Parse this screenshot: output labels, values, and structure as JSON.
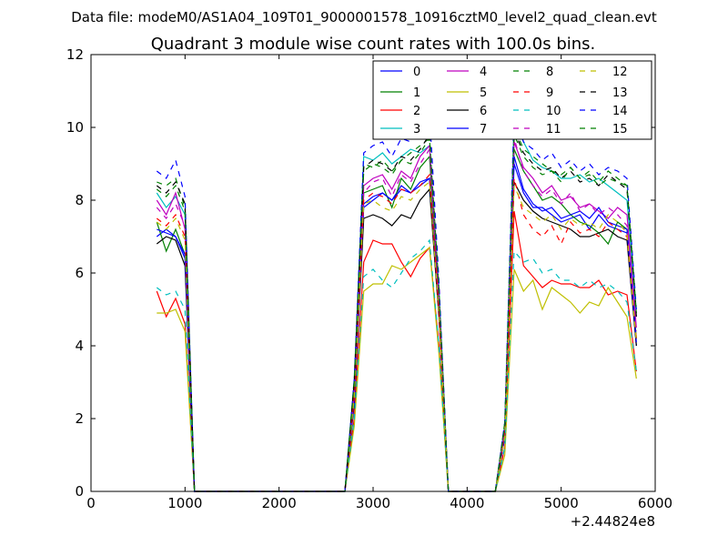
{
  "chart_data": {
    "type": "line",
    "suptitle": "Data file: modeM0/AS1A04_109T01_9000001578_10916cztM0_level2_quad_clean.evt",
    "title": "Quadrant 3 module wise count rates with 100.0s bins.",
    "xlabel": "",
    "ylabel": "",
    "x_offset_label": "+2.44824e8",
    "xlim": [
      0,
      6000
    ],
    "ylim": [
      0,
      12
    ],
    "xticks": [
      0,
      1000,
      2000,
      3000,
      4000,
      5000,
      6000
    ],
    "yticks": [
      0,
      2,
      4,
      6,
      8,
      10,
      12
    ],
    "legend_location": "top-right",
    "x": [
      700,
      800,
      900,
      1000,
      1100,
      1200,
      1300,
      1400,
      1500,
      1600,
      1700,
      1800,
      1900,
      2000,
      2100,
      2200,
      2300,
      2400,
      2500,
      2600,
      2700,
      2800,
      2900,
      3000,
      3100,
      3200,
      3300,
      3400,
      3500,
      3600,
      3700,
      3800,
      3900,
      4000,
      4100,
      4200,
      4300,
      4400,
      4500,
      4600,
      4700,
      4800,
      4900,
      5000,
      5100,
      5200,
      5300,
      5400,
      5500,
      5600,
      5700,
      5800
    ],
    "series": [
      {
        "name": "0",
        "color": "#0000ff",
        "dash": "solid",
        "values": [
          7.0,
          7.2,
          7.0,
          6.4,
          0,
          0,
          0,
          0,
          0,
          0,
          0,
          0,
          0,
          0,
          0,
          0,
          0,
          0,
          0,
          0,
          0,
          2.5,
          7.8,
          8.0,
          8.2,
          8.0,
          8.4,
          8.2,
          8.5,
          8.6,
          5.0,
          0,
          0,
          0,
          0,
          0,
          0,
          1.5,
          9.0,
          8.2,
          7.8,
          7.8,
          7.6,
          7.4,
          7.5,
          7.6,
          7.2,
          7.6,
          7.3,
          7.2,
          7.1,
          4.0
        ]
      },
      {
        "name": "1",
        "color": "#008000",
        "dash": "solid",
        "values": [
          7.4,
          6.6,
          7.2,
          6.5,
          0,
          0,
          0,
          0,
          0,
          0,
          0,
          0,
          0,
          0,
          0,
          0,
          0,
          0,
          0,
          0,
          0,
          2.7,
          8.2,
          8.3,
          8.4,
          7.8,
          8.6,
          8.3,
          8.9,
          9.2,
          5.2,
          0,
          0,
          0,
          0,
          0,
          0,
          1.6,
          9.4,
          8.8,
          8.4,
          8.0,
          8.1,
          7.9,
          7.6,
          7.4,
          7.3,
          7.1,
          6.8,
          7.4,
          7.2,
          4.2
        ]
      },
      {
        "name": "2",
        "color": "#ff0000",
        "dash": "solid",
        "values": [
          5.5,
          4.8,
          5.3,
          4.6,
          0,
          0,
          0,
          0,
          0,
          0,
          0,
          0,
          0,
          0,
          0,
          0,
          0,
          0,
          0,
          0,
          0,
          2.0,
          6.3,
          6.9,
          6.8,
          6.8,
          6.3,
          5.9,
          6.4,
          6.7,
          4.0,
          0,
          0,
          0,
          0,
          0,
          0,
          1.2,
          7.7,
          6.2,
          5.9,
          5.6,
          5.8,
          5.7,
          5.7,
          5.6,
          5.6,
          5.8,
          5.4,
          5.5,
          5.4,
          3.3
        ]
      },
      {
        "name": "3",
        "color": "#00bfbf",
        "dash": "solid",
        "values": [
          8.2,
          7.8,
          8.1,
          7.6,
          0,
          0,
          0,
          0,
          0,
          0,
          0,
          0,
          0,
          0,
          0,
          0,
          0,
          0,
          0,
          0,
          0,
          3.0,
          9.2,
          9.1,
          9.3,
          9.0,
          9.2,
          9.4,
          9.3,
          9.5,
          5.6,
          0,
          0,
          0,
          0,
          0,
          0,
          1.8,
          10.2,
          9.6,
          9.1,
          8.9,
          8.8,
          8.6,
          8.6,
          8.7,
          8.5,
          8.6,
          8.4,
          8.2,
          8.0,
          4.8
        ]
      },
      {
        "name": "4",
        "color": "#bf00bf",
        "dash": "solid",
        "values": [
          8.0,
          7.6,
          8.2,
          7.2,
          0,
          0,
          0,
          0,
          0,
          0,
          0,
          0,
          0,
          0,
          0,
          0,
          0,
          0,
          0,
          0,
          0,
          2.8,
          8.4,
          8.6,
          8.7,
          8.3,
          8.8,
          8.6,
          9.2,
          9.5,
          5.4,
          0,
          0,
          0,
          0,
          0,
          0,
          1.7,
          9.6,
          8.9,
          8.6,
          8.2,
          8.4,
          8.0,
          8.1,
          7.8,
          7.9,
          7.7,
          7.5,
          7.8,
          7.6,
          4.5
        ]
      },
      {
        "name": "5",
        "color": "#bfbf00",
        "dash": "solid",
        "values": [
          4.9,
          4.9,
          5.0,
          4.4,
          0,
          0,
          0,
          0,
          0,
          0,
          0,
          0,
          0,
          0,
          0,
          0,
          0,
          0,
          0,
          0,
          0,
          1.8,
          5.5,
          5.7,
          5.7,
          6.2,
          6.1,
          6.3,
          6.5,
          6.7,
          3.8,
          0,
          0,
          0,
          0,
          0,
          0,
          1.0,
          6.1,
          5.5,
          5.8,
          5.0,
          5.6,
          5.4,
          5.2,
          4.9,
          5.2,
          5.1,
          5.6,
          5.2,
          4.8,
          3.1
        ]
      },
      {
        "name": "6",
        "color": "#000000",
        "dash": "solid",
        "values": [
          6.8,
          7.0,
          6.9,
          6.2,
          0,
          0,
          0,
          0,
          0,
          0,
          0,
          0,
          0,
          0,
          0,
          0,
          0,
          0,
          0,
          0,
          0,
          2.4,
          7.5,
          7.6,
          7.5,
          7.3,
          7.6,
          7.5,
          8.0,
          8.3,
          4.8,
          0,
          0,
          0,
          0,
          0,
          0,
          1.5,
          8.5,
          8.0,
          7.7,
          7.5,
          7.4,
          7.3,
          7.2,
          7.0,
          7.0,
          7.1,
          7.2,
          7.0,
          6.9,
          4.0
        ]
      },
      {
        "name": "7",
        "color": "#0000ff",
        "dash": "solid",
        "values": [
          7.2,
          7.1,
          7.0,
          6.5,
          0,
          0,
          0,
          0,
          0,
          0,
          0,
          0,
          0,
          0,
          0,
          0,
          0,
          0,
          0,
          0,
          0,
          2.5,
          7.9,
          8.1,
          8.2,
          8.0,
          8.3,
          8.2,
          8.4,
          8.6,
          5.0,
          0,
          0,
          0,
          0,
          0,
          0,
          1.5,
          9.2,
          8.3,
          7.9,
          7.7,
          7.8,
          7.5,
          7.6,
          7.7,
          7.5,
          7.8,
          7.4,
          7.3,
          7.2,
          4.1
        ]
      },
      {
        "name": "8",
        "color": "#008000",
        "dash": "dashed",
        "values": [
          8.5,
          8.4,
          8.6,
          7.8,
          0,
          0,
          0,
          0,
          0,
          0,
          0,
          0,
          0,
          0,
          0,
          0,
          0,
          0,
          0,
          0,
          0,
          3.1,
          9.0,
          8.9,
          9.1,
          8.8,
          9.1,
          9.3,
          9.5,
          9.7,
          5.6,
          0,
          0,
          0,
          0,
          0,
          0,
          1.9,
          10.0,
          9.4,
          9.2,
          9.0,
          8.8,
          8.7,
          8.9,
          8.6,
          8.7,
          8.4,
          8.6,
          8.5,
          8.4,
          4.9
        ]
      },
      {
        "name": "9",
        "color": "#ff0000",
        "dash": "dashed",
        "values": [
          7.5,
          7.3,
          7.6,
          7.0,
          0,
          0,
          0,
          0,
          0,
          0,
          0,
          0,
          0,
          0,
          0,
          0,
          0,
          0,
          0,
          0,
          0,
          2.6,
          8.0,
          8.2,
          8.1,
          7.9,
          8.3,
          8.2,
          8.4,
          8.7,
          5.0,
          0,
          0,
          0,
          0,
          0,
          0,
          1.6,
          8.6,
          7.6,
          7.2,
          7.0,
          7.3,
          6.8,
          7.4,
          7.1,
          7.2,
          7.0,
          7.4,
          7.2,
          7.0,
          4.2
        ]
      },
      {
        "name": "10",
        "color": "#00bfbf",
        "dash": "dashed",
        "values": [
          5.6,
          5.4,
          5.5,
          5.0,
          0,
          0,
          0,
          0,
          0,
          0,
          0,
          0,
          0,
          0,
          0,
          0,
          0,
          0,
          0,
          0,
          0,
          2.0,
          5.9,
          6.1,
          5.8,
          5.6,
          6.0,
          6.4,
          6.6,
          6.9,
          4.0,
          0,
          0,
          0,
          0,
          0,
          0,
          1.2,
          6.6,
          6.3,
          6.4,
          6.0,
          6.1,
          5.8,
          5.8,
          5.6,
          5.8,
          5.6,
          5.7,
          5.5,
          5.2,
          3.3
        ]
      },
      {
        "name": "11",
        "color": "#bf00bf",
        "dash": "dashed",
        "values": [
          7.8,
          7.5,
          7.9,
          7.3,
          0,
          0,
          0,
          0,
          0,
          0,
          0,
          0,
          0,
          0,
          0,
          0,
          0,
          0,
          0,
          0,
          0,
          2.7,
          8.2,
          8.5,
          8.6,
          8.1,
          8.7,
          8.5,
          9.0,
          9.4,
          5.3,
          0,
          0,
          0,
          0,
          0,
          0,
          1.7,
          9.7,
          8.8,
          8.4,
          8.1,
          8.3,
          7.9,
          8.2,
          7.7,
          7.9,
          7.6,
          7.8,
          7.6,
          7.3,
          4.4
        ]
      },
      {
        "name": "12",
        "color": "#bfbf00",
        "dash": "dashed",
        "values": [
          7.4,
          7.2,
          7.5,
          6.9,
          0,
          0,
          0,
          0,
          0,
          0,
          0,
          0,
          0,
          0,
          0,
          0,
          0,
          0,
          0,
          0,
          0,
          2.6,
          7.9,
          8.0,
          7.8,
          7.7,
          8.1,
          8.0,
          8.3,
          8.5,
          4.9,
          0,
          0,
          0,
          0,
          0,
          0,
          1.5,
          8.4,
          7.8,
          7.6,
          7.4,
          7.6,
          7.2,
          7.5,
          7.3,
          7.4,
          7.2,
          7.6,
          7.4,
          7.1,
          4.1
        ]
      },
      {
        "name": "13",
        "color": "#000000",
        "dash": "dashed",
        "values": [
          8.4,
          8.2,
          8.5,
          7.9,
          0,
          0,
          0,
          0,
          0,
          0,
          0,
          0,
          0,
          0,
          0,
          0,
          0,
          0,
          0,
          0,
          0,
          3.0,
          8.9,
          9.1,
          9.0,
          8.8,
          9.2,
          9.1,
          9.4,
          9.8,
          5.6,
          0,
          0,
          0,
          0,
          0,
          0,
          1.8,
          9.9,
          9.3,
          9.0,
          8.8,
          8.9,
          8.6,
          8.8,
          8.5,
          8.6,
          8.4,
          8.7,
          8.5,
          8.3,
          4.8
        ]
      },
      {
        "name": "14",
        "color": "#0000ff",
        "dash": "dashed",
        "values": [
          8.8,
          8.6,
          9.1,
          8.1,
          0,
          0,
          0,
          0,
          0,
          0,
          0,
          0,
          0,
          0,
          0,
          0,
          0,
          0,
          0,
          0,
          0,
          3.1,
          9.3,
          9.5,
          9.6,
          9.2,
          9.7,
          9.6,
          9.9,
          10.4,
          5.8,
          0,
          0,
          0,
          0,
          0,
          0,
          1.9,
          10.4,
          9.6,
          9.4,
          9.1,
          9.3,
          8.9,
          9.1,
          8.8,
          9.0,
          8.7,
          8.9,
          8.8,
          8.6,
          5.0
        ]
      },
      {
        "name": "15",
        "color": "#008000",
        "dash": "dashed",
        "values": [
          8.3,
          8.1,
          8.4,
          7.7,
          0,
          0,
          0,
          0,
          0,
          0,
          0,
          0,
          0,
          0,
          0,
          0,
          0,
          0,
          0,
          0,
          0,
          3.0,
          8.8,
          9.0,
          8.9,
          8.7,
          9.1,
          9.0,
          9.3,
          9.7,
          5.5,
          0,
          0,
          0,
          0,
          0,
          0,
          1.8,
          9.8,
          9.2,
          8.9,
          8.7,
          8.8,
          8.5,
          8.9,
          8.6,
          8.8,
          8.5,
          8.8,
          8.6,
          8.4,
          4.9
        ]
      }
    ]
  }
}
